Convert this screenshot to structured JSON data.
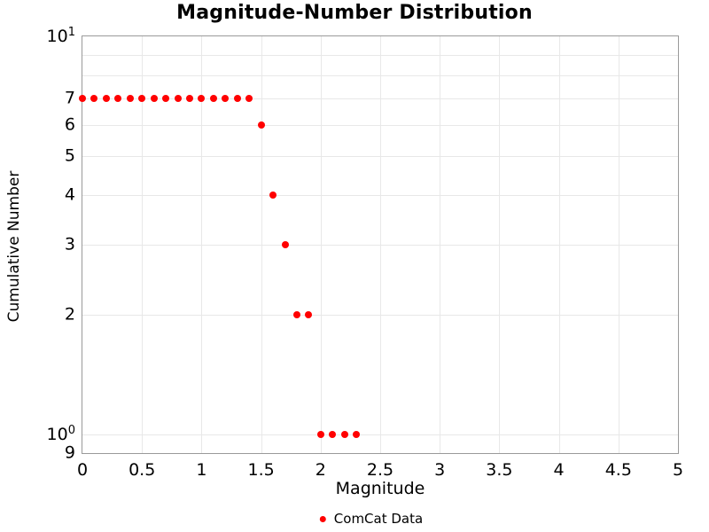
{
  "colors": {
    "point": "#ff0000",
    "grid": "#e8e8e8",
    "spine": "#9a9a9a",
    "text": "#000000"
  },
  "chart_data": {
    "type": "scatter",
    "title": "Magnitude-Number Distribution",
    "xlabel": "Magnitude",
    "ylabel": "Cumulative Number",
    "grid": true,
    "legend_position": "bottom-center",
    "legend": [
      {
        "label": "ComCat Data",
        "color": "#ff0000",
        "marker": "circle"
      }
    ],
    "x_axis": {
      "scale": "linear",
      "min": 0,
      "max": 5,
      "ticks": [
        {
          "v": 0,
          "label": "0"
        },
        {
          "v": 0.5,
          "label": "0.5"
        },
        {
          "v": 1,
          "label": "1"
        },
        {
          "v": 1.5,
          "label": "1.5"
        },
        {
          "v": 2,
          "label": "2"
        },
        {
          "v": 2.5,
          "label": "2.5"
        },
        {
          "v": 3,
          "label": "3"
        },
        {
          "v": 3.5,
          "label": "3.5"
        },
        {
          "v": 4,
          "label": "4"
        },
        {
          "v": 4.5,
          "label": "4.5"
        },
        {
          "v": 5,
          "label": "5"
        }
      ]
    },
    "y_axis": {
      "scale": "log",
      "min": 0.9,
      "max": 10,
      "grid_values": [
        1,
        2,
        3,
        4,
        5,
        6,
        7,
        8,
        9
      ],
      "ticks": [
        {
          "v": 10,
          "label": "10",
          "sup": "1"
        },
        {
          "v": 7,
          "label": "7"
        },
        {
          "v": 6,
          "label": "6"
        },
        {
          "v": 5,
          "label": "5"
        },
        {
          "v": 4,
          "label": "4"
        },
        {
          "v": 3,
          "label": "3"
        },
        {
          "v": 2,
          "label": "2"
        },
        {
          "v": 1,
          "label": "10",
          "sup": "0"
        },
        {
          "v": 0.9,
          "label": "9"
        }
      ]
    },
    "series": [
      {
        "name": "ComCat Data",
        "x": [
          0.0,
          0.1,
          0.2,
          0.3,
          0.4,
          0.5,
          0.6,
          0.7,
          0.8,
          0.9,
          1.0,
          1.1,
          1.2,
          1.3,
          1.4,
          1.5,
          1.6,
          1.7,
          1.8,
          1.9,
          2.0,
          2.1,
          2.2,
          2.3
        ],
        "y": [
          7,
          7,
          7,
          7,
          7,
          7,
          7,
          7,
          7,
          7,
          7,
          7,
          7,
          7,
          7,
          6,
          4,
          3,
          2,
          2,
          1,
          1,
          1,
          1
        ]
      }
    ]
  }
}
